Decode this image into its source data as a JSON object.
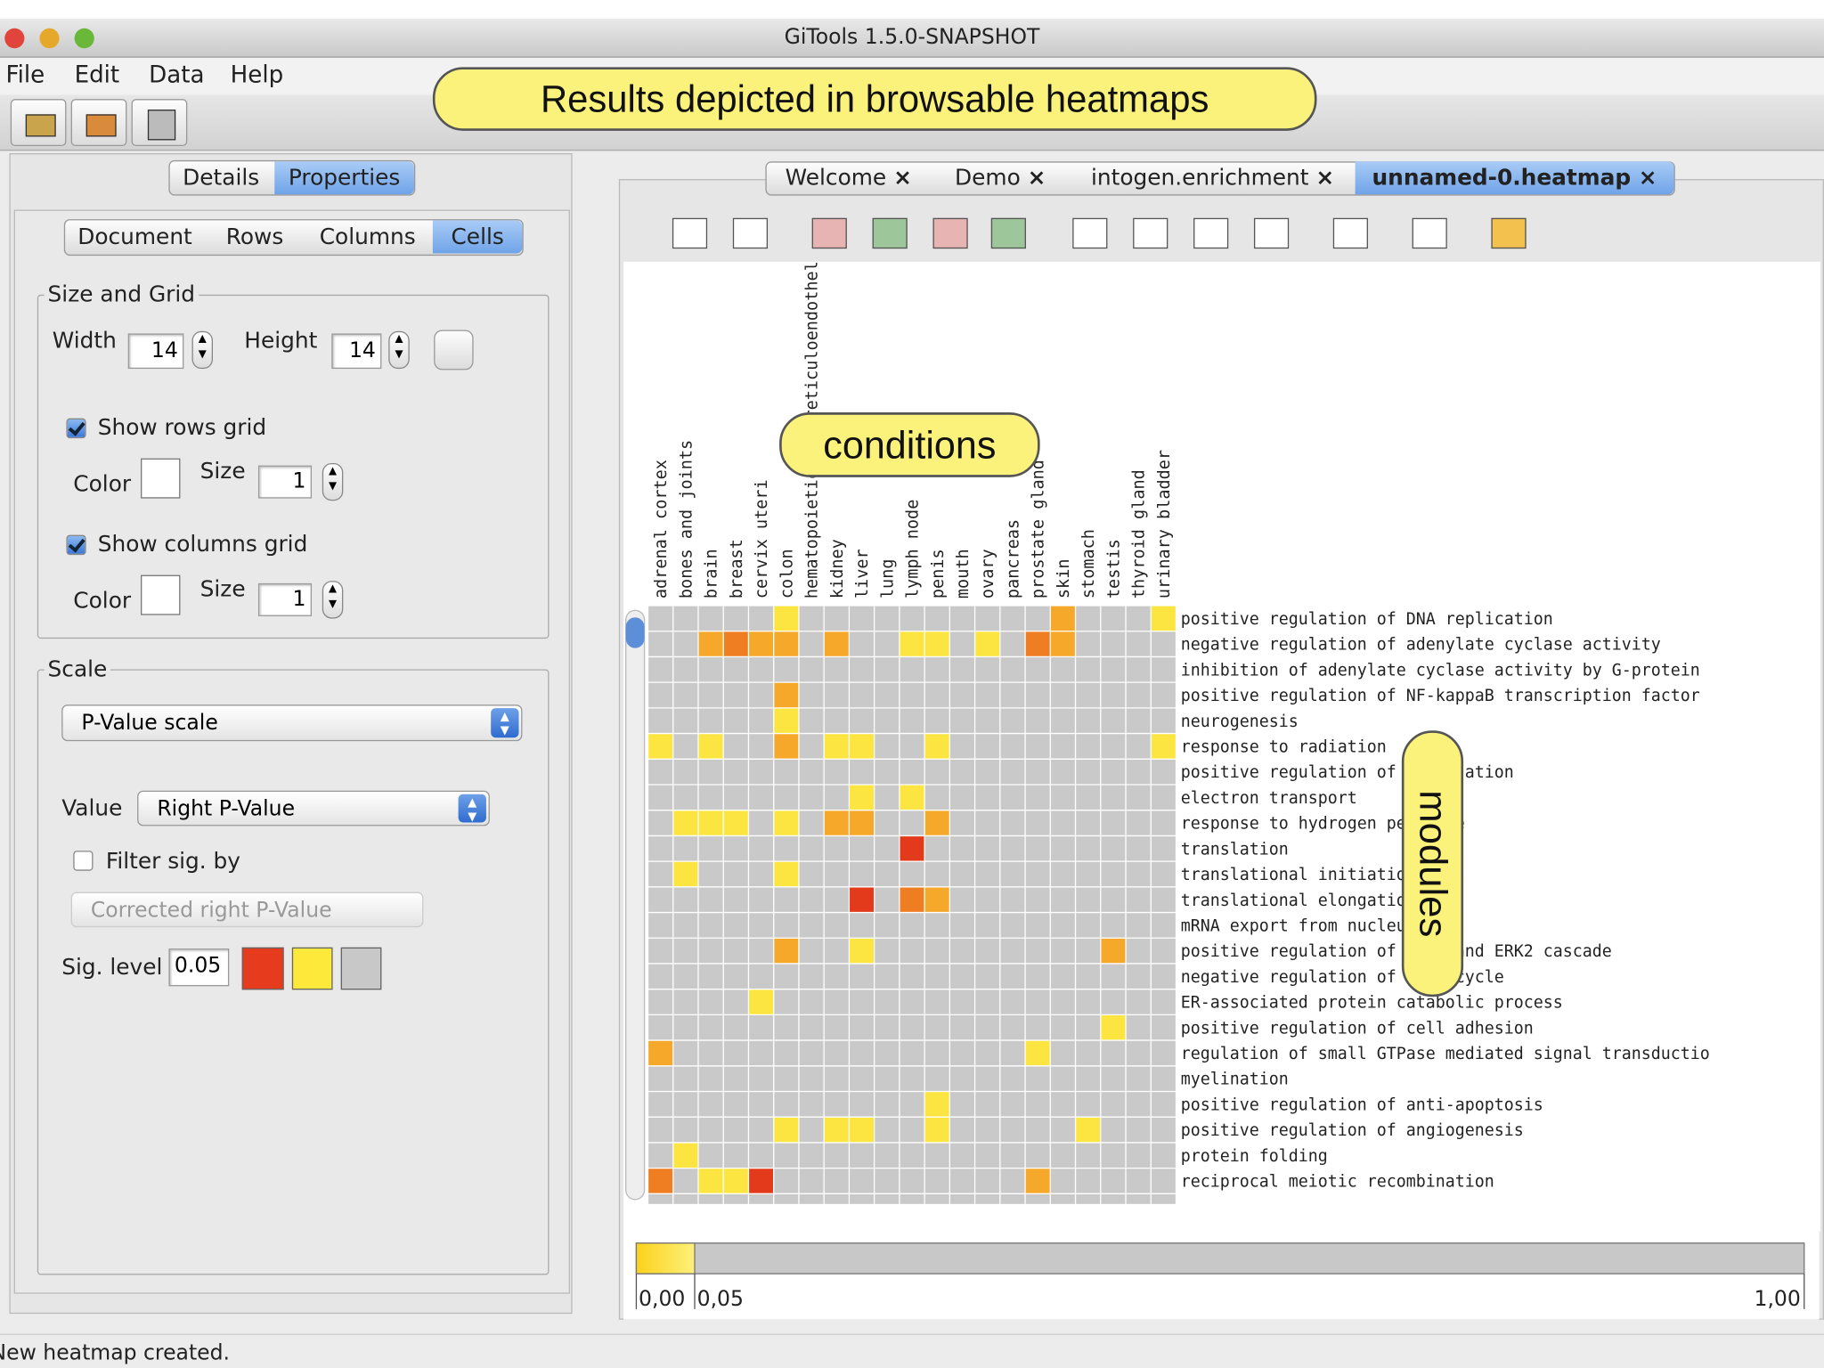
{
  "window": {
    "title": "GiTools 1.5.0-SNAPSHOT"
  },
  "menu": [
    "File",
    "Edit",
    "Data",
    "Help"
  ],
  "callouts": {
    "top": "Results depicted in browsable heatmaps",
    "conditions": "conditions",
    "modules": "modules"
  },
  "left_tabs": [
    "Details",
    "Properties"
  ],
  "sub_tabs": [
    "Document",
    "Rows",
    "Columns",
    "Cells"
  ],
  "size_and_grid": {
    "title": "Size and Grid",
    "width_label": "Width",
    "width": "14",
    "height_label": "Height",
    "height": "14",
    "show_rows_grid": "Show rows grid",
    "show_columns_grid": "Show columns grid",
    "color_label": "Color",
    "size_label": "Size",
    "rows_grid_size": "1",
    "columns_grid_size": "1"
  },
  "scale": {
    "title": "Scale",
    "scale_type": "P-Value scale",
    "value_label": "Value",
    "value": "Right P-Value",
    "filter_label": "Filter sig. by",
    "filter_value": "Corrected right P-Value",
    "sig_level_label": "Sig. level",
    "sig_level": "0.05"
  },
  "doc_tabs": [
    "Welcome",
    "Demo",
    "intogen.enrichment",
    "unnamed-0.heatmap"
  ],
  "heatmap": {
    "columns": [
      "adrenal cortex",
      "bones and joints",
      "brain",
      "breast",
      "cervix uteri",
      "colon",
      "hematopoietic and reticuloendothelial system",
      "kidney",
      "liver",
      "lung",
      "lymph node",
      "penis",
      "mouth",
      "ovary",
      "pancreas",
      "prostate gland",
      "skin",
      "stomach",
      "testis",
      "thyroid gland",
      "urinary bladder"
    ],
    "rows": [
      "positive regulation of DNA replication",
      "negative regulation of adenylate cyclase activity",
      "inhibition of adenylate cyclase activity by G-protein",
      "positive regulation of NF-kappaB transcription factor",
      "neurogenesis",
      "response to radiation",
      "positive regulation of translation",
      "electron transport",
      "response to hydrogen peroxide",
      "translation",
      "translational initiation",
      "translational elongation",
      "mRNA export from nucleus",
      "positive regulation of ERK1 and ERK2 cascade",
      "negative regulation of cell cycle",
      "ER-associated protein catabolic process",
      "positive regulation of cell adhesion",
      "regulation of small GTPase mediated signal transductio",
      "myelination",
      "positive regulation of anti-apoptosis",
      "positive regulation of angiogenesis",
      "protein folding",
      "reciprocal meiotic recombination"
    ],
    "cells": [
      {
        "row": 0,
        "column": 5,
        "color": "#fde541"
      },
      {
        "row": 0,
        "column": 16,
        "color": "#f5a82a"
      },
      {
        "row": 0,
        "column": 20,
        "color": "#fde541"
      },
      {
        "row": 1,
        "column": 2,
        "color": "#f5a82a"
      },
      {
        "row": 1,
        "column": 3,
        "color": "#ef7d22"
      },
      {
        "row": 1,
        "column": 4,
        "color": "#f5a82a"
      },
      {
        "row": 1,
        "column": 5,
        "color": "#f5a82a"
      },
      {
        "row": 1,
        "column": 7,
        "color": "#f5a82a"
      },
      {
        "row": 1,
        "column": 10,
        "color": "#fde541"
      },
      {
        "row": 1,
        "column": 11,
        "color": "#fde541"
      },
      {
        "row": 1,
        "column": 13,
        "color": "#fde541"
      },
      {
        "row": 1,
        "column": 15,
        "color": "#ef7d22"
      },
      {
        "row": 1,
        "column": 16,
        "color": "#f5a82a"
      },
      {
        "row": 3,
        "column": 5,
        "color": "#f5a82a"
      },
      {
        "row": 4,
        "column": 5,
        "color": "#fde541"
      },
      {
        "row": 5,
        "column": 0,
        "color": "#fde541"
      },
      {
        "row": 5,
        "column": 2,
        "color": "#fde541"
      },
      {
        "row": 5,
        "column": 5,
        "color": "#f5a82a"
      },
      {
        "row": 5,
        "column": 7,
        "color": "#fde541"
      },
      {
        "row": 5,
        "column": 8,
        "color": "#fde541"
      },
      {
        "row": 5,
        "column": 11,
        "color": "#fde541"
      },
      {
        "row": 5,
        "column": 20,
        "color": "#fde541"
      },
      {
        "row": 7,
        "column": 8,
        "color": "#fde541"
      },
      {
        "row": 7,
        "column": 10,
        "color": "#fde541"
      },
      {
        "row": 8,
        "column": 1,
        "color": "#fde541"
      },
      {
        "row": 8,
        "column": 2,
        "color": "#fde541"
      },
      {
        "row": 8,
        "column": 3,
        "color": "#fde541"
      },
      {
        "row": 8,
        "column": 5,
        "color": "#fde541"
      },
      {
        "row": 8,
        "column": 7,
        "color": "#f5a82a"
      },
      {
        "row": 8,
        "column": 8,
        "color": "#f5a82a"
      },
      {
        "row": 8,
        "column": 11,
        "color": "#f5a82a"
      },
      {
        "row": 9,
        "column": 10,
        "color": "#e23a1a"
      },
      {
        "row": 10,
        "column": 1,
        "color": "#fde541"
      },
      {
        "row": 10,
        "column": 5,
        "color": "#fde541"
      },
      {
        "row": 11,
        "column": 8,
        "color": "#e23a1a"
      },
      {
        "row": 11,
        "column": 10,
        "color": "#ef7d22"
      },
      {
        "row": 11,
        "column": 11,
        "color": "#f5a82a"
      },
      {
        "row": 13,
        "column": 5,
        "color": "#f5a82a"
      },
      {
        "row": 13,
        "column": 8,
        "color": "#fde541"
      },
      {
        "row": 13,
        "column": 18,
        "color": "#f5a82a"
      },
      {
        "row": 15,
        "column": 4,
        "color": "#fde541"
      },
      {
        "row": 16,
        "column": 18,
        "color": "#fde541"
      },
      {
        "row": 17,
        "column": 0,
        "color": "#f5a82a"
      },
      {
        "row": 17,
        "column": 15,
        "color": "#fde541"
      },
      {
        "row": 19,
        "column": 11,
        "color": "#fde541"
      },
      {
        "row": 20,
        "column": 5,
        "color": "#fde541"
      },
      {
        "row": 20,
        "column": 7,
        "color": "#fde541"
      },
      {
        "row": 20,
        "column": 8,
        "color": "#fde541"
      },
      {
        "row": 20,
        "column": 11,
        "color": "#fde541"
      },
      {
        "row": 20,
        "column": 17,
        "color": "#fde541"
      },
      {
        "row": 21,
        "column": 1,
        "color": "#fde541"
      },
      {
        "row": 22,
        "column": 0,
        "color": "#ef7d22"
      },
      {
        "row": 22,
        "column": 2,
        "color": "#fde541"
      },
      {
        "row": 22,
        "column": 3,
        "color": "#fde541"
      },
      {
        "row": 22,
        "column": 4,
        "color": "#e23a1a"
      },
      {
        "row": 22,
        "column": 15,
        "color": "#f5a82a"
      }
    ]
  },
  "color_scale": {
    "range": [
      0,
      1
    ],
    "ticks": [
      {
        "value": 0,
        "label": "0,00"
      },
      {
        "value": 0.05,
        "label": "0,05"
      },
      {
        "value": 1,
        "label": "1,00"
      }
    ]
  },
  "status": "New heatmap created."
}
